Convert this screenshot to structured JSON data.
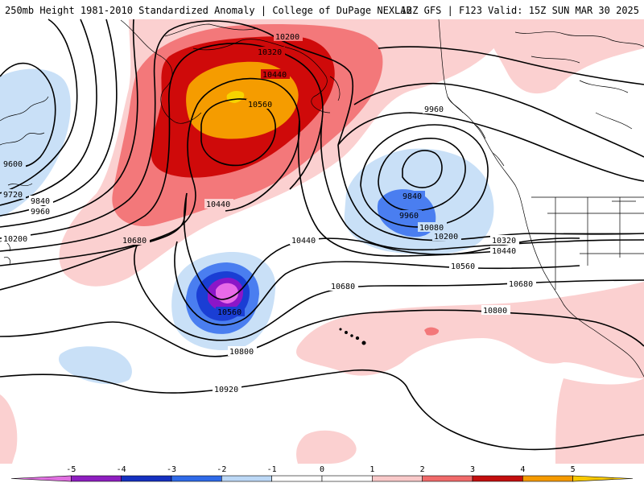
{
  "header": {
    "left_title": "250mb Height 1981-2010 Standardized Anomaly | College of DuPage NEXLAB",
    "right_title": "12Z GFS | F123 Valid: 15Z SUN MAR 30 2025"
  },
  "contour_labels": {
    "h9600": "9600",
    "h9720": "9720",
    "h9840": "9840",
    "h9960": "9960",
    "h10080": "10080",
    "h10200": "10200",
    "h10320": "10320",
    "h10440": "10440",
    "h10560": "10560",
    "h10680": "10680",
    "h10800": "10800",
    "h10920": "10920"
  },
  "colorbar": {
    "ticks": [
      "-5",
      "-4",
      "-3",
      "-2",
      "-1",
      "0",
      "1",
      "2",
      "3",
      "4",
      "5"
    ],
    "colors": [
      "#e070e0",
      "#8e1ec0",
      "#1530c0",
      "#2f6ae8",
      "#bcd8f6",
      "#ffffff",
      "#ffffff",
      "#f9c9c9",
      "#f06a6a",
      "#c30e0e",
      "#f59a00",
      "#f7c800"
    ]
  },
  "palette": {
    "pos1": "#fbd0d0",
    "pos2": "#f3787a",
    "pos3": "#cf0a0a",
    "pos4": "#f59c00",
    "pos5": "#f7d400",
    "neg1": "#c9e0f7",
    "neg2": "#4a7ef0",
    "neg3": "#1a3ed4",
    "neg4": "#8b16c8",
    "neg5": "#e86ae8",
    "contour": "#000000",
    "coast": "#000000"
  }
}
